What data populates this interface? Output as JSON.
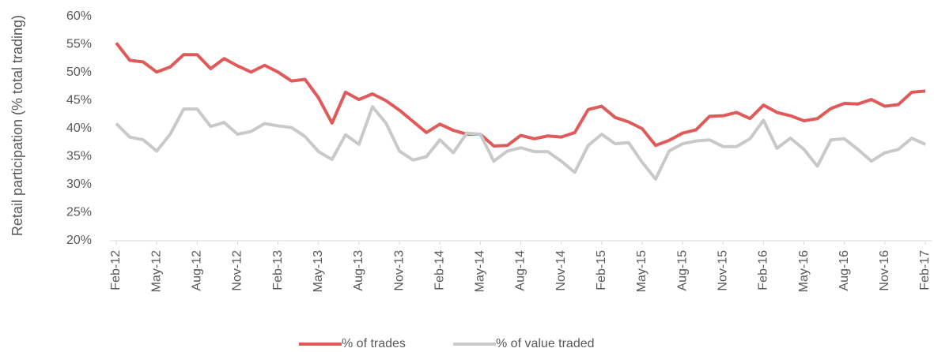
{
  "chart_data": {
    "type": "line",
    "y_label": "Retail participation (% total trading)",
    "categories": [
      "Feb-12",
      null,
      null,
      "May-12",
      null,
      null,
      "Aug-12",
      null,
      null,
      "Nov-12",
      null,
      null,
      "Feb-13",
      null,
      null,
      "May-13",
      null,
      null,
      "Aug-13",
      null,
      null,
      "Nov-13",
      null,
      null,
      "Feb-14",
      null,
      null,
      "May-14",
      null,
      null,
      "Aug-14",
      null,
      null,
      "Nov-14",
      null,
      null,
      "Feb-15",
      null,
      null,
      "May-15",
      null,
      null,
      "Aug-15",
      null,
      null,
      "Nov-15",
      null,
      null,
      "Feb-16",
      null,
      null,
      "May-16",
      null,
      null,
      "Aug-16",
      null,
      null,
      "Nov-16",
      null,
      null,
      "Feb-17"
    ],
    "series": [
      {
        "name": "% of trades",
        "color": "#e05a5a",
        "values": [
          55.3,
          52.2,
          51.9,
          50.1,
          51.0,
          53.2,
          53.2,
          50.7,
          52.5,
          51.2,
          50.1,
          51.3,
          50.1,
          48.5,
          48.8,
          45.5,
          41.0,
          46.5,
          45.2,
          46.2,
          45.0,
          43.3,
          41.3,
          39.3,
          40.8,
          39.7,
          39.0,
          39.0,
          36.9,
          37.0,
          38.8,
          38.2,
          38.7,
          38.5,
          39.3,
          43.4,
          44.0,
          42.0,
          41.2,
          40.0,
          37.0,
          37.9,
          39.2,
          39.8,
          42.2,
          42.3,
          42.9,
          41.8,
          44.2,
          42.9,
          42.3,
          41.4,
          41.8,
          43.6,
          44.5,
          44.4,
          45.2,
          44.0,
          44.3,
          46.5,
          46.7
        ]
      },
      {
        "name": "% of value traded",
        "color": "#c9c9c9",
        "values": [
          40.9,
          38.5,
          38.0,
          36.0,
          39.0,
          43.5,
          43.5,
          40.4,
          41.1,
          39.0,
          39.5,
          40.9,
          40.5,
          40.2,
          38.6,
          35.9,
          34.5,
          38.9,
          37.2,
          43.9,
          41.0,
          36.0,
          34.4,
          35.0,
          38.0,
          35.7,
          39.2,
          39.0,
          34.2,
          36.0,
          36.6,
          35.9,
          35.9,
          34.2,
          32.2,
          37.0,
          39.0,
          37.3,
          37.5,
          34.0,
          31.0,
          36.0,
          37.3,
          37.8,
          38.0,
          36.8,
          36.8,
          38.2,
          41.5,
          36.5,
          38.3,
          36.3,
          33.3,
          38.0,
          38.2,
          36.3,
          34.2,
          35.7,
          36.3,
          38.3,
          37.2
        ]
      }
    ],
    "ylim": [
      20,
      60
    ],
    "yticks": [
      {
        "value": 20,
        "label": "20%"
      },
      {
        "value": 25,
        "label": "25%"
      },
      {
        "value": 30,
        "label": "30%"
      },
      {
        "value": 35,
        "label": "35%"
      },
      {
        "value": 40,
        "label": "40%"
      },
      {
        "value": 45,
        "label": "45%"
      },
      {
        "value": 50,
        "label": "50%"
      },
      {
        "value": 55,
        "label": "55%"
      },
      {
        "value": 60,
        "label": "60%"
      }
    ]
  }
}
